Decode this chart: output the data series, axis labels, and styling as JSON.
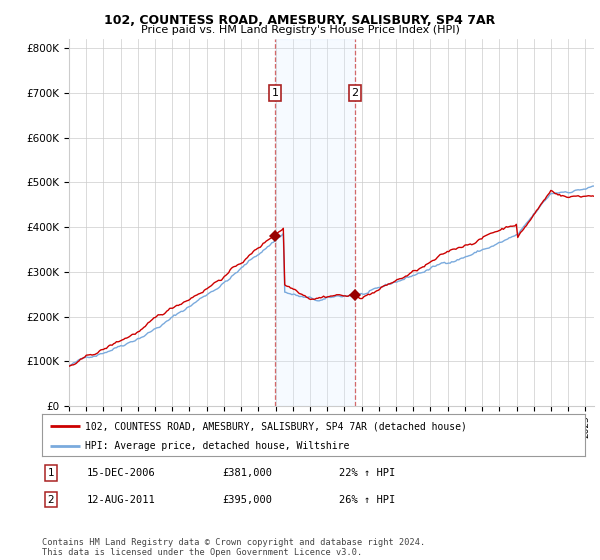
{
  "title1": "102, COUNTESS ROAD, AMESBURY, SALISBURY, SP4 7AR",
  "title2": "Price paid vs. HM Land Registry's House Price Index (HPI)",
  "ylabel_ticks": [
    "£0",
    "£100K",
    "£200K",
    "£300K",
    "£400K",
    "£500K",
    "£600K",
    "£700K",
    "£800K"
  ],
  "ytick_vals": [
    0,
    100000,
    200000,
    300000,
    400000,
    500000,
    600000,
    700000,
    800000
  ],
  "ylim": [
    0,
    820000
  ],
  "sale1_year": 2006.96,
  "sale1_price": 381000,
  "sale1_label": "1",
  "sale1_date": "15-DEC-2006",
  "sale1_hpi": "22% ↑ HPI",
  "sale2_year": 2011.62,
  "sale2_price": 395000,
  "sale2_label": "2",
  "sale2_date": "12-AUG-2011",
  "sale2_hpi": "26% ↑ HPI",
  "legend_line1": "102, COUNTESS ROAD, AMESBURY, SALISBURY, SP4 7AR (detached house)",
  "legend_line2": "HPI: Average price, detached house, Wiltshire",
  "footer": "Contains HM Land Registry data © Crown copyright and database right 2024.\nThis data is licensed under the Open Government Licence v3.0.",
  "line_color_red": "#cc0000",
  "line_color_blue": "#7aaadd",
  "shade_color": "#ddeeff",
  "xmin": 1995.0,
  "xmax": 2025.5,
  "background_color": "#ffffff",
  "grid_color": "#cccccc"
}
